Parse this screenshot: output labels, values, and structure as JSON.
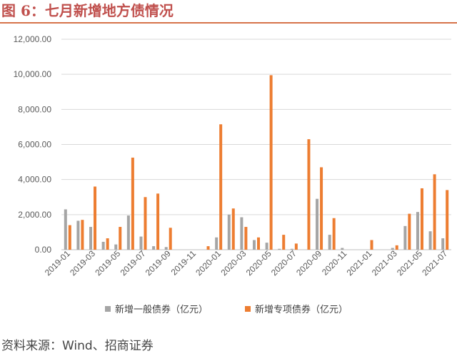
{
  "page": {
    "title": "图 6：七月新增地方债情况",
    "source": "资料来源：Wind、招商证券"
  },
  "colors": {
    "accent": "#c0504d",
    "general_bond": "#a5a5a5",
    "special_bond": "#ed7d31",
    "grid": "#d9d9d9"
  },
  "chart_data": {
    "type": "bar",
    "ylim": [
      0,
      12000
    ],
    "yticks": [
      "0.00",
      "2,000.00",
      "4,000.00",
      "6,000.00",
      "8,000.00",
      "10,000.00",
      "12,000.00"
    ],
    "ytick_values": [
      0,
      2000,
      4000,
      6000,
      8000,
      10000,
      12000
    ],
    "grid": true,
    "legend_position": "bottom",
    "categories": [
      "2019-01",
      "2019-02",
      "2019-03",
      "2019-04",
      "2019-05",
      "2019-06",
      "2019-07",
      "2019-08",
      "2019-09",
      "2019-10",
      "2019-11",
      "2019-12",
      "2020-01",
      "2020-02",
      "2020-03",
      "2020-04",
      "2020-05",
      "2020-06",
      "2020-07",
      "2020-08",
      "2020-09",
      "2020-10",
      "2020-11",
      "2020-12",
      "2021-01",
      "2021-02",
      "2021-03",
      "2021-04",
      "2021-05",
      "2021-06",
      "2021-07"
    ],
    "xtick_labels": [
      "2019-01",
      "2019-03",
      "2019-05",
      "2019-07",
      "2019-09",
      "2019-11",
      "2020-01",
      "2020-03",
      "2020-05",
      "2020-07",
      "2020-09",
      "2020-11",
      "2021-01",
      "2021-03",
      "2021-05",
      "2021-07"
    ],
    "series": [
      {
        "name": "新增一般债券（亿元）",
        "values": [
          2300,
          1650,
          1300,
          450,
          300,
          1950,
          750,
          200,
          150,
          0,
          0,
          0,
          700,
          2000,
          1850,
          550,
          400,
          50,
          50,
          0,
          2900,
          850,
          100,
          0,
          0,
          0,
          100,
          1350,
          2150,
          1050,
          650
        ]
      },
      {
        "name": "新增专项债券（亿元）",
        "values": [
          1400,
          1700,
          3600,
          650,
          1300,
          5250,
          3000,
          3200,
          1250,
          0,
          0,
          200,
          7150,
          2350,
          1300,
          700,
          9950,
          850,
          350,
          6300,
          4700,
          1800,
          0,
          0,
          550,
          0,
          250,
          2050,
          3500,
          4300,
          3400
        ]
      }
    ]
  }
}
